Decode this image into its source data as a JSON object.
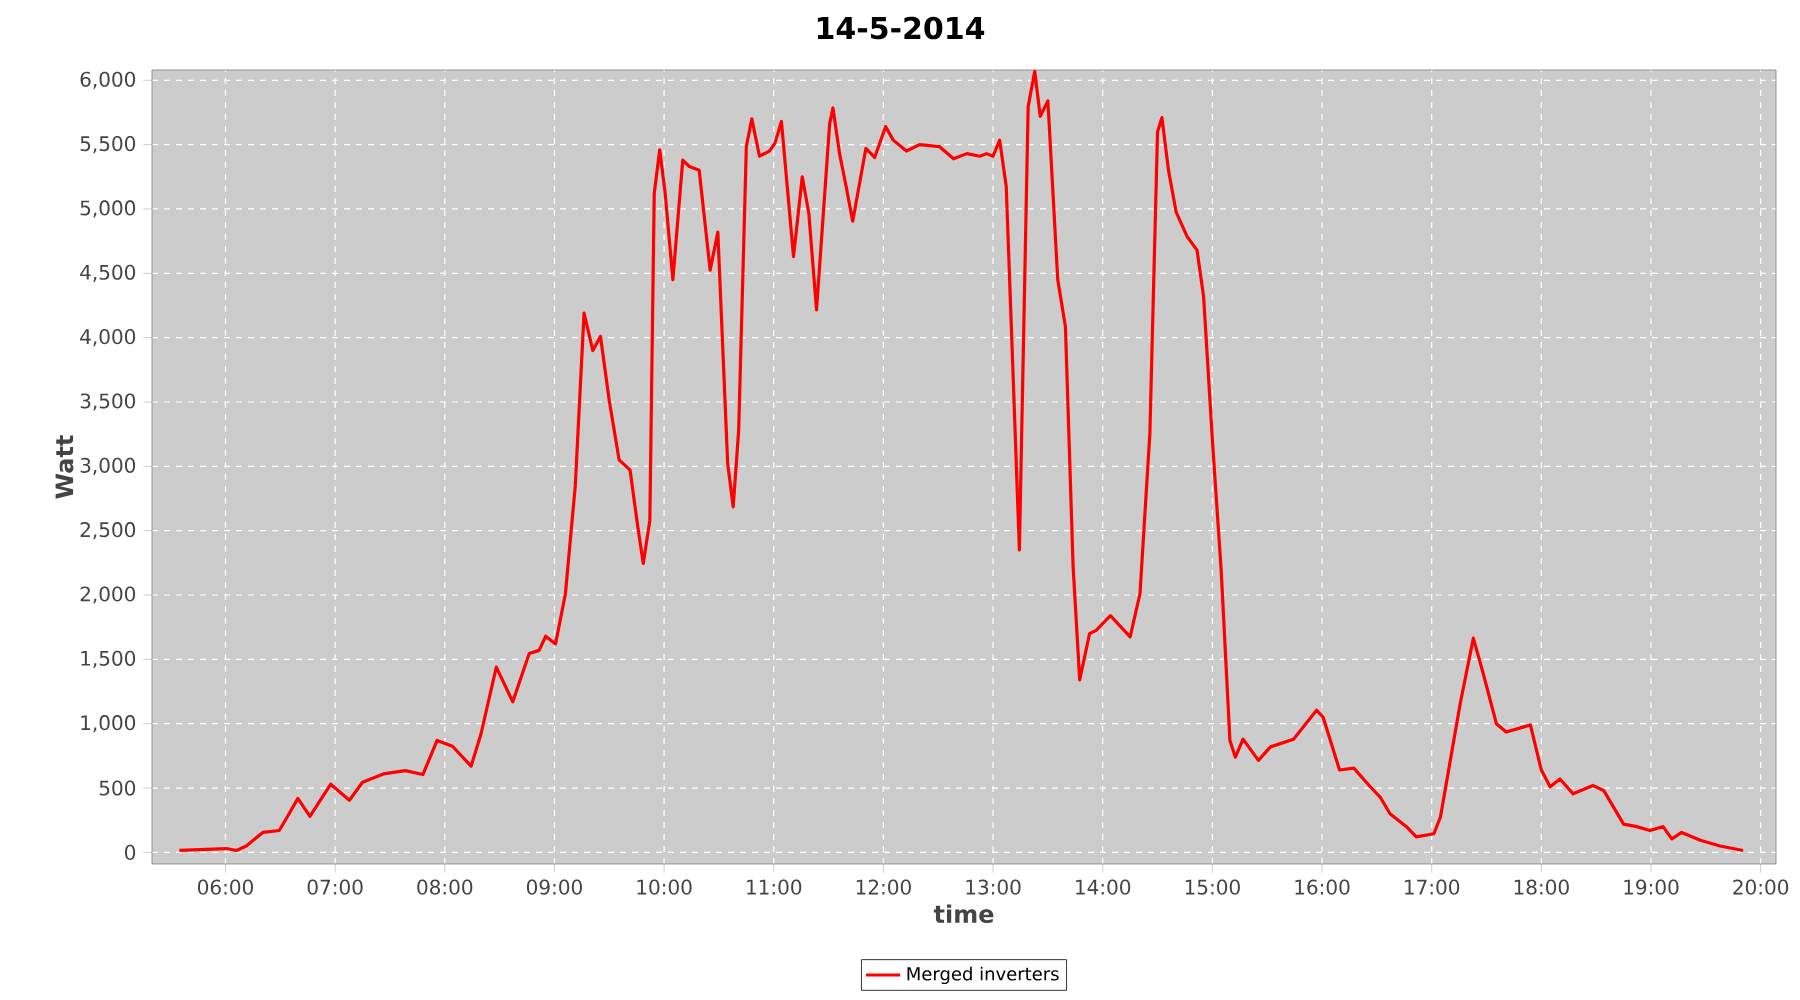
{
  "chart_data": {
    "type": "line",
    "title": "14-5-2014",
    "xlabel": "time",
    "ylabel": "Watt",
    "x": [
      5.58,
      6.01,
      6.1,
      6.19,
      6.34,
      6.49,
      6.58,
      6.66,
      6.77,
      6.96,
      7.13,
      7.25,
      7.44,
      7.64,
      7.8,
      7.93,
      8.07,
      8.24,
      8.33,
      8.47,
      8.62,
      8.77,
      8.86,
      8.92,
      9.01,
      9.1,
      9.19,
      9.27,
      9.35,
      9.42,
      9.5,
      9.59,
      9.69,
      9.76,
      9.81,
      9.87,
      9.91,
      9.96,
      10.01,
      10.08,
      10.17,
      10.23,
      10.32,
      10.42,
      10.49,
      10.58,
      10.63,
      10.68,
      10.75,
      10.8,
      10.87,
      10.96,
      11.01,
      11.07,
      11.18,
      11.26,
      11.32,
      11.39,
      11.51,
      11.54,
      11.6,
      11.66,
      11.72,
      11.84,
      11.92,
      12.02,
      12.09,
      12.21,
      12.33,
      12.51,
      12.64,
      12.76,
      12.88,
      12.94,
      13.0,
      13.06,
      13.12,
      13.17,
      13.24,
      13.32,
      13.38,
      13.43,
      13.5,
      13.59,
      13.66,
      13.73,
      13.79,
      13.88,
      13.94,
      14.07,
      14.25,
      14.34,
      14.43,
      14.5,
      14.54,
      14.6,
      14.67,
      14.77,
      14.86,
      14.92,
      15.0,
      15.08,
      15.16,
      15.21,
      15.28,
      15.42,
      15.53,
      15.74,
      15.95,
      16.01,
      16.16,
      16.29,
      16.44,
      16.53,
      16.62,
      16.77,
      16.86,
      17.02,
      17.08,
      17.17,
      17.26,
      17.38,
      17.47,
      17.59,
      17.68,
      17.9,
      18.0,
      18.08,
      18.17,
      18.29,
      18.47,
      18.57,
      18.75,
      18.87,
      18.99,
      19.11,
      19.19,
      19.28,
      19.45,
      19.63,
      19.84
    ],
    "series": [
      {
        "name": "Merged inverters",
        "color": "#ff0000",
        "values": [
          15,
          30,
          15,
          50,
          155,
          170,
          300,
          420,
          280,
          530,
          405,
          545,
          610,
          635,
          605,
          870,
          825,
          670,
          920,
          1440,
          1170,
          1545,
          1570,
          1680,
          1620,
          2010,
          2850,
          4190,
          3900,
          4010,
          3510,
          3050,
          2970,
          2530,
          2245,
          2580,
          5120,
          5460,
          5120,
          4450,
          5380,
          5330,
          5300,
          4525,
          4820,
          3020,
          2685,
          3280,
          5485,
          5700,
          5410,
          5450,
          5510,
          5680,
          4630,
          5250,
          4965,
          4215,
          5665,
          5785,
          5430,
          5175,
          4905,
          5470,
          5400,
          5640,
          5535,
          5450,
          5500,
          5485,
          5390,
          5430,
          5410,
          5430,
          5410,
          5535,
          5175,
          4010,
          2350,
          5795,
          6070,
          5720,
          5840,
          4450,
          4085,
          2220,
          1340,
          1700,
          1725,
          1840,
          1675,
          2010,
          3255,
          5600,
          5710,
          5300,
          4975,
          4785,
          4680,
          4320,
          3205,
          2195,
          870,
          740,
          880,
          715,
          820,
          880,
          1105,
          1050,
          640,
          655,
          510,
          430,
          300,
          200,
          120,
          145,
          275,
          715,
          1155,
          1665,
          1390,
          1000,
          935,
          990,
          640,
          510,
          570,
          455,
          520,
          480,
          220,
          200,
          170,
          200,
          105,
          155,
          95,
          50,
          15
        ]
      }
    ],
    "xlim": [
      5.33,
      20.14
    ],
    "ylim": [
      -90,
      6080
    ],
    "xticks": [
      {
        "value": 6,
        "label": "06:00"
      },
      {
        "value": 7,
        "label": "07:00"
      },
      {
        "value": 8,
        "label": "08:00"
      },
      {
        "value": 9,
        "label": "09:00"
      },
      {
        "value": 10,
        "label": "10:00"
      },
      {
        "value": 11,
        "label": "11:00"
      },
      {
        "value": 12,
        "label": "12:00"
      },
      {
        "value": 13,
        "label": "13:00"
      },
      {
        "value": 14,
        "label": "14:00"
      },
      {
        "value": 15,
        "label": "15:00"
      },
      {
        "value": 16,
        "label": "16:00"
      },
      {
        "value": 17,
        "label": "17:00"
      },
      {
        "value": 18,
        "label": "18:00"
      },
      {
        "value": 19,
        "label": "19:00"
      },
      {
        "value": 20,
        "label": "20:00"
      }
    ],
    "yticks": [
      0,
      500,
      {
        "value": 1000,
        "label": "1,000"
      },
      {
        "value": 1500,
        "label": "1,500"
      },
      {
        "value": 2000,
        "label": "2,000"
      },
      {
        "value": 2500,
        "label": "2,500"
      },
      {
        "value": 3000,
        "label": "3,000"
      },
      {
        "value": 3500,
        "label": "3,500"
      },
      {
        "value": 4000,
        "label": "4,000"
      },
      {
        "value": 4500,
        "label": "4,500"
      },
      {
        "value": 5000,
        "label": "5,000"
      },
      {
        "value": 5500,
        "label": "5,500"
      },
      {
        "value": 6000,
        "label": "6,000"
      }
    ],
    "grid": true,
    "legend": "bottom",
    "line_style": "solid"
  }
}
